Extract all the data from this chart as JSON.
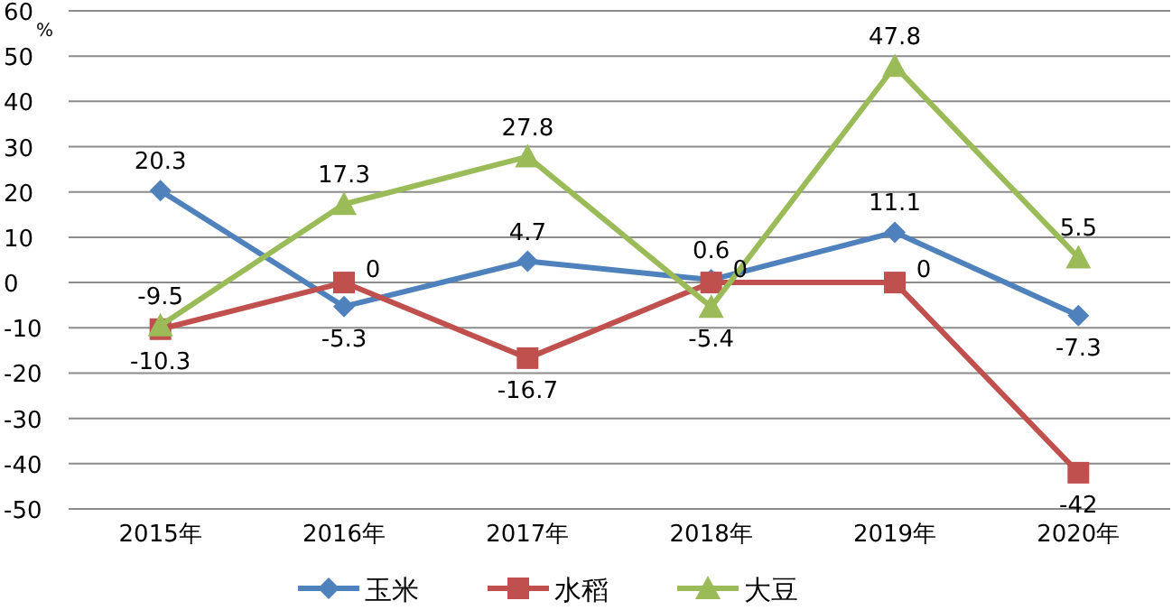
{
  "chart_data": {
    "type": "line",
    "ylabel": "%",
    "categories": [
      "2015年",
      "2016年",
      "2017年",
      "2018年",
      "2019年",
      "2020年"
    ],
    "series": [
      {
        "name": "玉米",
        "color": "#4f81bd",
        "marker": "diamond",
        "values": [
          20.3,
          -5.3,
          4.7,
          0.6,
          11.1,
          -7.3
        ]
      },
      {
        "name": "水稻",
        "color": "#c0504d",
        "marker": "square",
        "values": [
          -10.3,
          0,
          -16.7,
          0,
          0,
          -42
        ]
      },
      {
        "name": "大豆",
        "color": "#9bbb59",
        "marker": "triangle",
        "values": [
          -9.5,
          17.3,
          27.8,
          -5.4,
          47.8,
          5.5
        ]
      }
    ],
    "ylim": [
      -50,
      60
    ],
    "yticks": [
      -50,
      -40,
      -30,
      -20,
      -10,
      0,
      10,
      20,
      30,
      40,
      50,
      60
    ],
    "grid": "y",
    "legend": "bottom",
    "data_labels": true
  }
}
